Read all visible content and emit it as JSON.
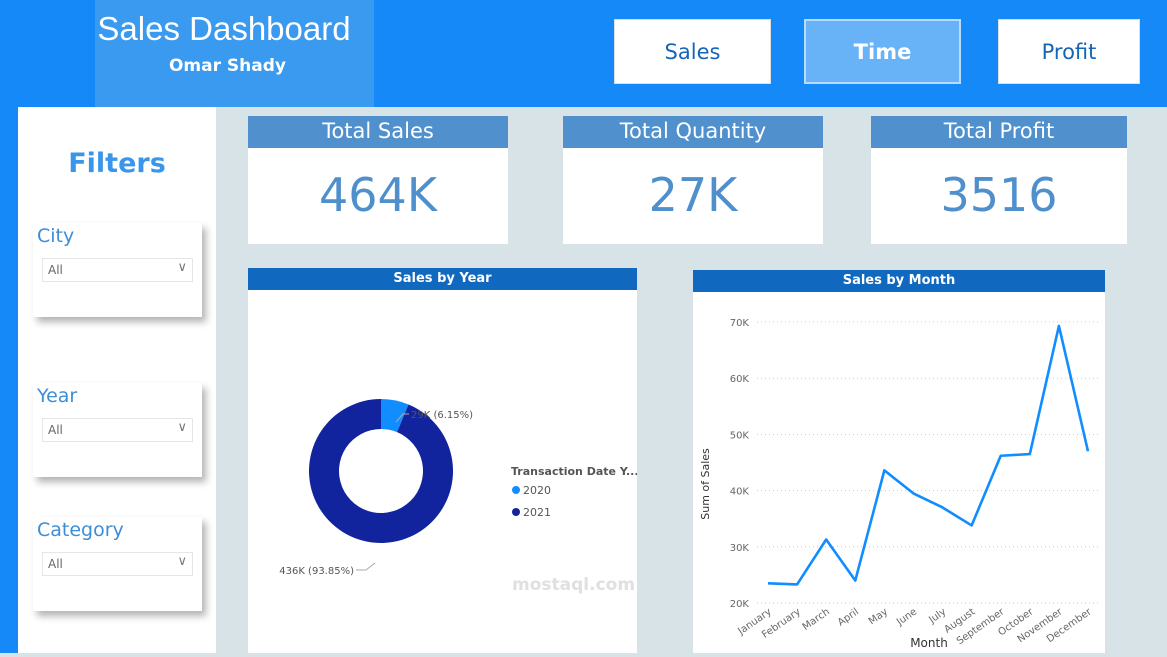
{
  "header": {
    "title": "Sales Dashboard",
    "author": "Omar Shady",
    "nav": [
      {
        "label": "Sales"
      },
      {
        "label": "Time",
        "active": true
      },
      {
        "label": "Profit"
      }
    ]
  },
  "sidebar": {
    "title": "Filters",
    "slicers": [
      {
        "label": "City",
        "value": "All"
      },
      {
        "label": "Year",
        "value": "All"
      },
      {
        "label": "Category",
        "value": "All"
      }
    ]
  },
  "cards": [
    {
      "title": "Total Sales",
      "value": "464K"
    },
    {
      "title": "Total Quantity",
      "value": "27K"
    },
    {
      "title": "Total Profit",
      "value": "3516"
    }
  ],
  "watermark": "mostaql.com",
  "chart_data": [
    {
      "type": "pie",
      "title": "Sales by Year",
      "legend_title": "Transaction Date Y...",
      "legend_position": "right",
      "categories": [
        "2020",
        "2021"
      ],
      "values": [
        29000,
        436000
      ],
      "labels": [
        "29K (6.15%)",
        "436K (93.85%)"
      ],
      "colors": [
        "#118dff",
        "#12239e"
      ]
    },
    {
      "type": "line",
      "title": "Sales by Month",
      "xlabel": "Month",
      "ylabel": "Sum of Sales",
      "ylim": [
        20000,
        70000
      ],
      "yticks": [
        "20K",
        "30K",
        "40K",
        "50K",
        "60K",
        "70K"
      ],
      "categories": [
        "January",
        "February",
        "March",
        "April",
        "May",
        "June",
        "July",
        "August",
        "September",
        "October",
        "November",
        "December"
      ],
      "values": [
        23500,
        23300,
        31300,
        24000,
        43600,
        39500,
        37000,
        33800,
        46200,
        46500,
        69300,
        47000
      ],
      "color": "#118dff",
      "grid": true
    }
  ]
}
